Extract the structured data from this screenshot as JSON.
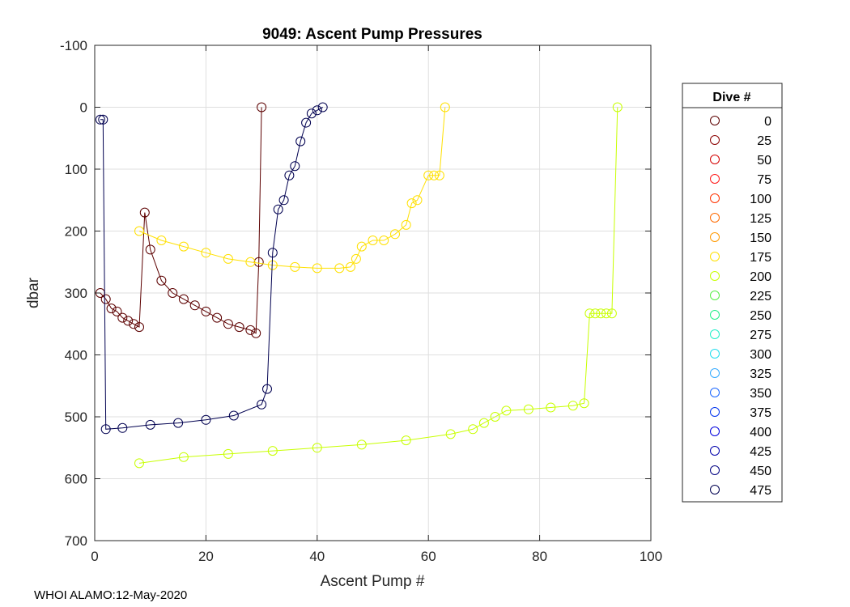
{
  "chart_data": {
    "type": "scatter",
    "title": "9049: Ascent Pump Pressures",
    "xlabel": "Ascent Pump #",
    "ylabel": "dbar",
    "xlim": [
      0,
      100
    ],
    "ylim": [
      -100,
      700
    ],
    "y_reversed": true,
    "grid": true,
    "x_ticks": [
      0,
      20,
      40,
      60,
      80,
      100
    ],
    "y_ticks": [
      -100,
      0,
      100,
      200,
      300,
      400,
      500,
      600,
      700
    ],
    "legend": {
      "title": "Dive #",
      "placement": "outside-right",
      "entries": [
        "0",
        "25",
        "50",
        "75",
        "100",
        "125",
        "150",
        "175",
        "200",
        "225",
        "250",
        "275",
        "300",
        "325",
        "350",
        "375",
        "400",
        "425",
        "450",
        "475"
      ],
      "colors": [
        "#5c0000",
        "#8a0000",
        "#d40000",
        "#ff1a1a",
        "#ff3300",
        "#ff6a00",
        "#ff9900",
        "#ffe000",
        "#c8ff00",
        "#55ee44",
        "#22ee88",
        "#22eec8",
        "#22ddee",
        "#33aaff",
        "#1a66ff",
        "#0033ee",
        "#0000dd",
        "#0000aa",
        "#000080",
        "#000050"
      ]
    },
    "series": [
      {
        "name": "0",
        "color": "#5c0000",
        "x": [
          1,
          2,
          3,
          4,
          5,
          6,
          7,
          8,
          9,
          10,
          12,
          14,
          16,
          18,
          20,
          22,
          24,
          26,
          28,
          29,
          29.5,
          30
        ],
        "y": [
          300,
          310,
          325,
          330,
          340,
          345,
          350,
          355,
          170,
          230,
          280,
          300,
          310,
          320,
          330,
          340,
          350,
          355,
          360,
          365,
          250,
          0
        ]
      },
      {
        "name": "175",
        "color": "#ffe000",
        "x": [
          8,
          12,
          16,
          20,
          24,
          28,
          32,
          36,
          40,
          44,
          46,
          47,
          48,
          50,
          52,
          54,
          56,
          57,
          58,
          60,
          61,
          62,
          63
        ],
        "y": [
          200,
          215,
          225,
          235,
          245,
          250,
          255,
          258,
          260,
          260,
          258,
          245,
          225,
          215,
          215,
          205,
          190,
          155,
          150,
          110,
          110,
          110,
          0
        ]
      },
      {
        "name": "200",
        "color": "#c8ff00",
        "x": [
          8,
          16,
          24,
          32,
          40,
          48,
          56,
          64,
          68,
          70,
          72,
          74,
          78,
          82,
          86,
          88,
          89,
          90,
          91,
          92,
          93,
          94
        ],
        "y": [
          575,
          565,
          560,
          555,
          550,
          545,
          538,
          528,
          520,
          510,
          500,
          490,
          488,
          485,
          482,
          478,
          333,
          333,
          333,
          333,
          333,
          0
        ]
      },
      {
        "name": "475",
        "color": "#000050",
        "x": [
          1,
          1.5,
          2,
          5,
          10,
          15,
          20,
          25,
          30,
          31,
          32,
          33,
          34,
          35,
          36,
          37,
          38,
          39,
          40,
          41
        ],
        "y": [
          20,
          20,
          520,
          518,
          513,
          510,
          505,
          498,
          480,
          455,
          235,
          165,
          150,
          110,
          95,
          55,
          25,
          10,
          5,
          0
        ]
      }
    ]
  },
  "footer": "WHOI ALAMO:12-May-2020"
}
